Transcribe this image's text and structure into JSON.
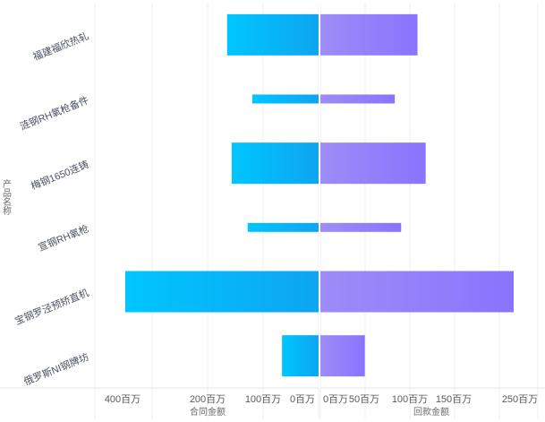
{
  "chart_data": {
    "type": "bar",
    "orientation": "horizontal-butterfly",
    "y_axis_title": "产品名称",
    "categories": [
      "福建福欣热轧",
      "涟钢RH氧枪备件",
      "梅钢1650连铸",
      "宣钢RH氧枪",
      "宝钢罗泾预矫直机",
      "俄罗斯NI钢牌坊"
    ],
    "series": [
      {
        "name": "合同金额",
        "side": "left",
        "values": [
          80,
          58,
          76,
          62,
          169,
          32
        ],
        "color_start": "#00c6ff",
        "color_end": "#0ea5f0",
        "ticks": [
          "400百万",
          "200百万",
          "100百万",
          "0百万"
        ]
      },
      {
        "name": "回款金额",
        "side": "right",
        "values": [
          107,
          82,
          116,
          89,
          213,
          49
        ],
        "color_start": "#9e8cf7",
        "color_end": "#8a73ff",
        "ticks": [
          "0百万",
          "50百万",
          "100百万",
          "150百万",
          "250百万"
        ]
      }
    ],
    "bar_thickness_level": [
      "thick",
      "thin",
      "thick",
      "thin",
      "thick",
      "thick"
    ],
    "grid": true
  }
}
